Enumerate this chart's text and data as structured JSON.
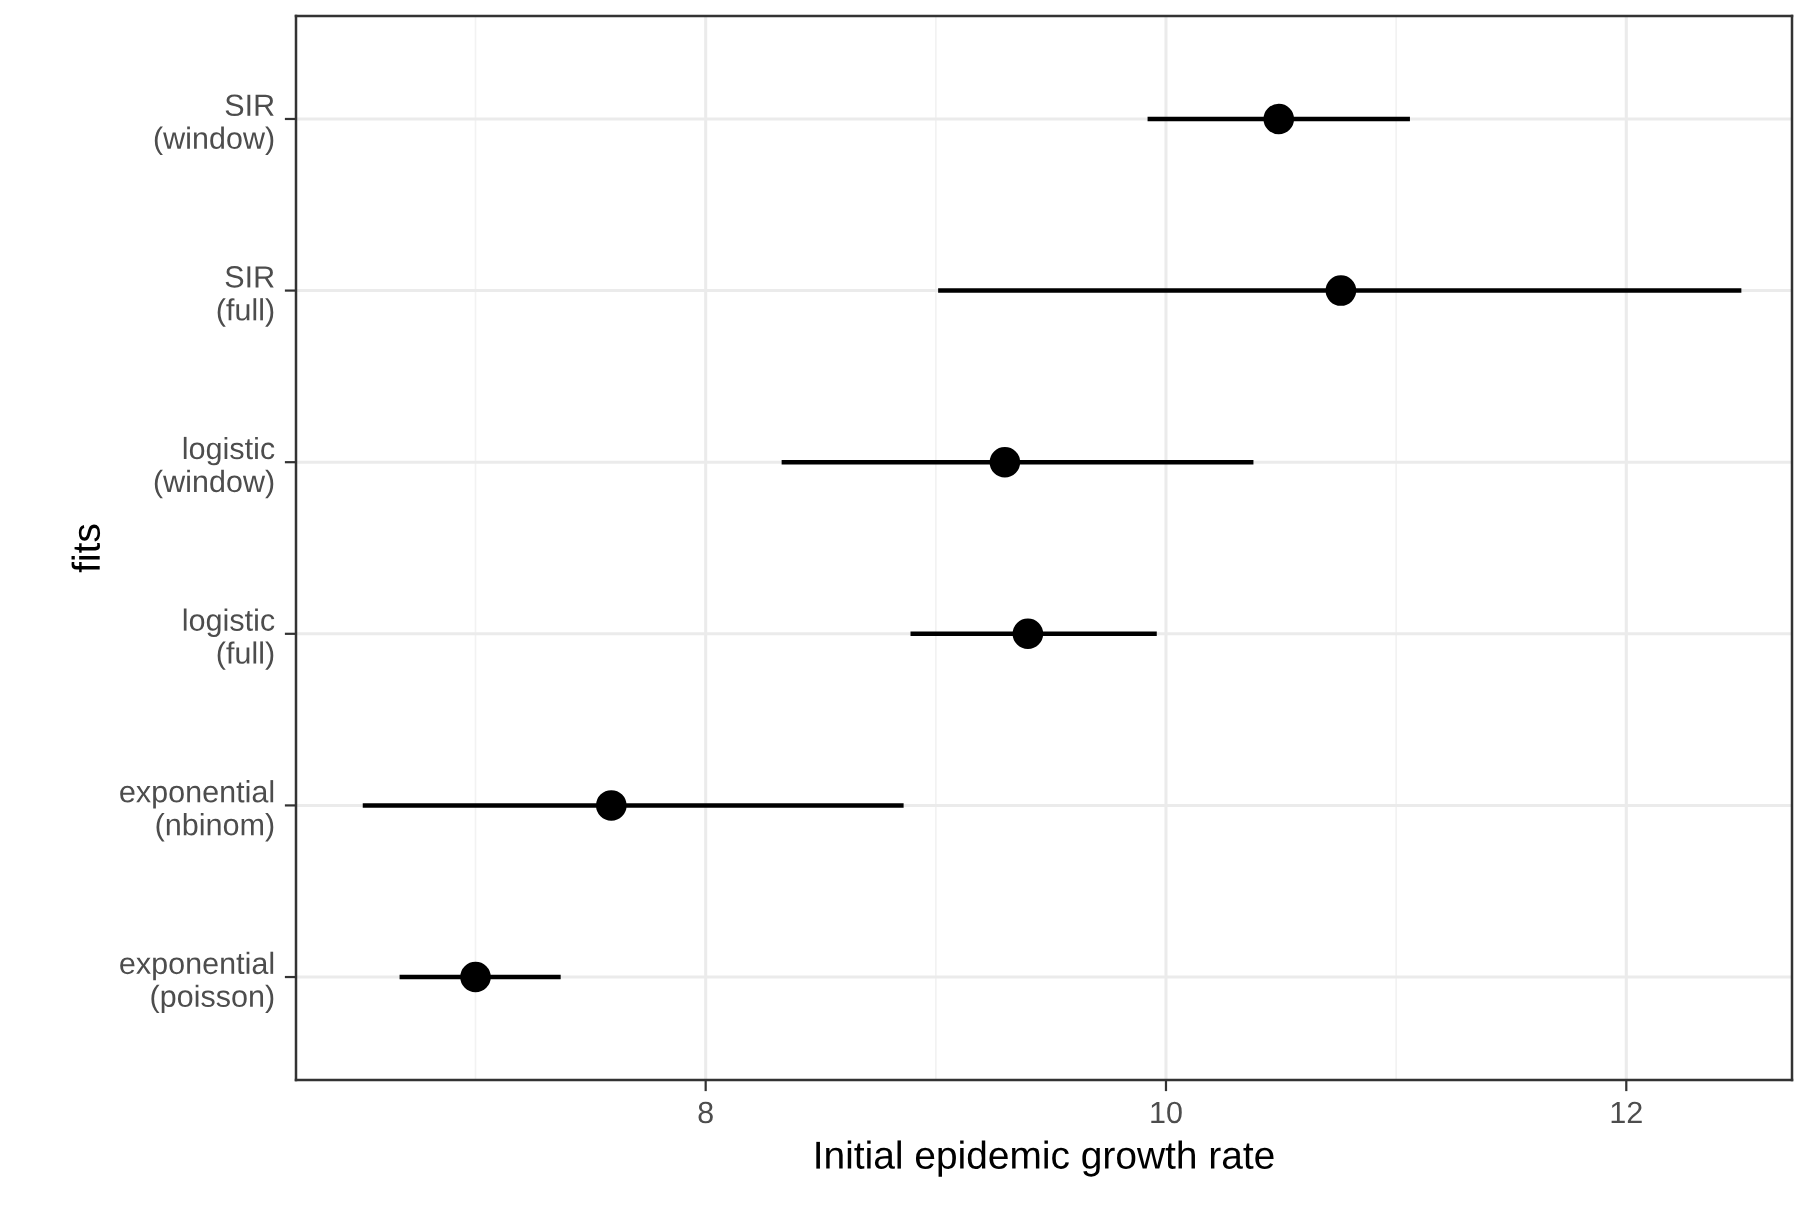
{
  "chart_data": {
    "type": "scatter",
    "orientation": "horizontal",
    "categories": [
      "SIR\n(window)",
      "SIR\n(full)",
      "logistic\n(window)",
      "logistic\n(full)",
      "exponential\n(nbinom)",
      "exponential\n(poisson)"
    ],
    "values": [
      10.49,
      10.76,
      9.3,
      9.4,
      7.59,
      7.0
    ],
    "errors": [
      [
        9.92,
        11.06
      ],
      [
        9.01,
        12.5
      ],
      [
        8.33,
        10.38
      ],
      [
        8.89,
        9.96
      ],
      [
        6.51,
        8.86
      ],
      [
        6.67,
        7.37
      ]
    ],
    "color": "#000000",
    "marker": "circle",
    "xlim": [
      6.22,
      12.72
    ],
    "xticks": [
      8,
      10,
      12
    ],
    "xlabel": "Initial epidemic growth rate",
    "ylabel": "fits",
    "grid": true
  }
}
